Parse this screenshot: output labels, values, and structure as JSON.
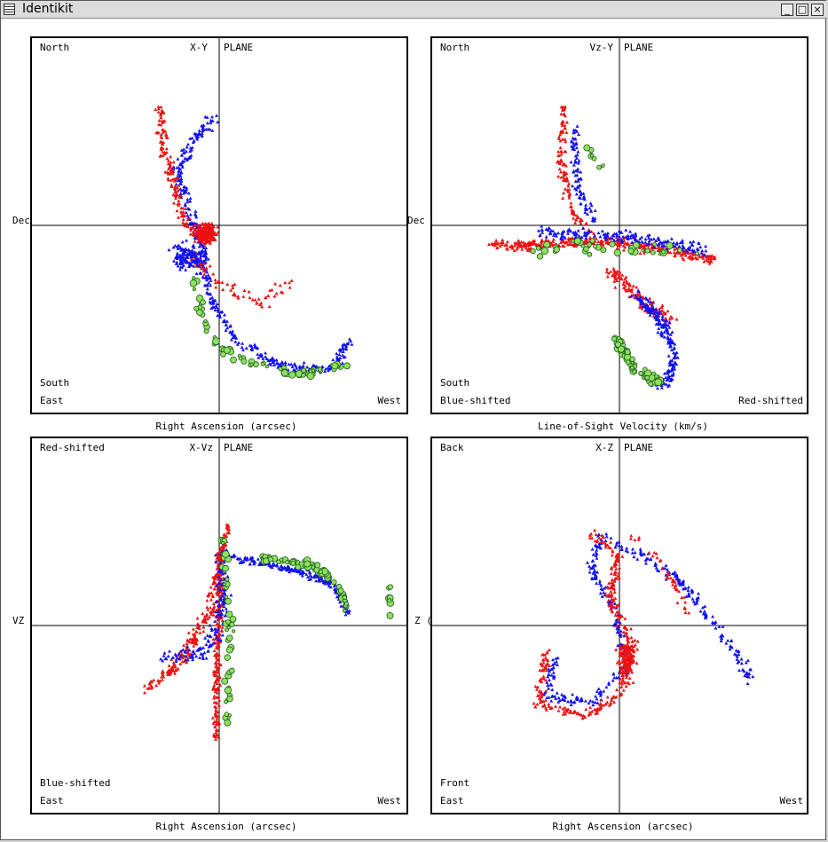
{
  "window": {
    "title": "Identikit",
    "buttons": {
      "minimize": "_",
      "maximize": "□",
      "close": "×"
    }
  },
  "colors": {
    "red": "#ee1111",
    "blue": "#1111ee",
    "green": "#8fe060",
    "green_edge": "#1a5a1a",
    "axis": "#000000"
  },
  "panels": [
    {
      "plane_left": "X-Y",
      "plane_right": "PLANE",
      "top_left": "North",
      "bottom_left_1": "South",
      "bottom_left_2": "East",
      "bottom_right": "West",
      "xlabel": "Right Ascension (arcsec)",
      "ylabel": "Dec"
    },
    {
      "plane_left": "Vz-Y",
      "plane_right": "PLANE",
      "top_left": "North",
      "bottom_left_1": "South",
      "bottom_left_2": "Blue-shifted",
      "bottom_right": "Red-shifted",
      "xlabel": "Line-of-Sight Velocity (km/s)",
      "ylabel": "Dec"
    },
    {
      "plane_left": "X-Vz",
      "plane_right": "PLANE",
      "top_left": "Red-shifted",
      "bottom_left_1": "Blue-shifted",
      "bottom_left_2": "East",
      "bottom_right": "West",
      "xlabel": "Right Ascension (arcsec)",
      "ylabel": "VZ"
    },
    {
      "plane_left": "X-Z",
      "plane_right": "PLANE",
      "top_left": "Back",
      "bottom_left_1": "Front",
      "bottom_left_2": "East",
      "bottom_right": "West",
      "xlabel": "Right Ascension (arcsec)",
      "ylabel": "Z ("
    }
  ]
}
